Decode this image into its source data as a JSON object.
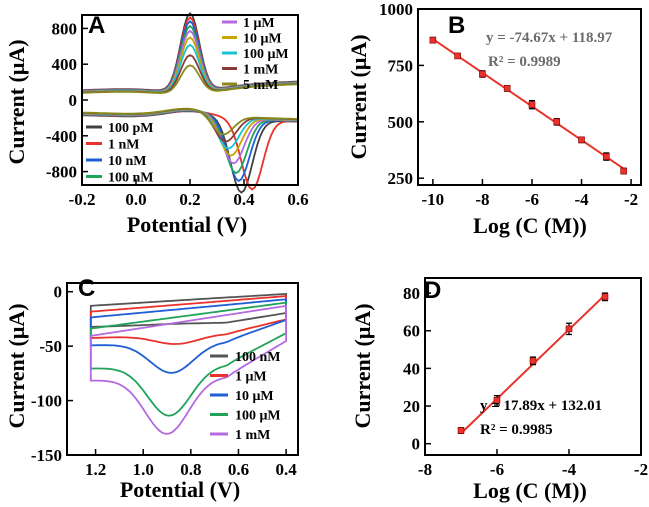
{
  "chart_data": [
    {
      "id": "A",
      "type": "line",
      "panel_label": "A",
      "title": "",
      "xlabel": "Potential (V)",
      "ylabel": "Current (μA)",
      "xlim": [
        -0.2,
        0.6
      ],
      "ylim": [
        -950,
        950
      ],
      "xticks": [
        -0.2,
        0.0,
        0.2,
        0.4,
        0.6
      ],
      "xtick_labels": [
        "-0.2",
        "0.0",
        "0.2",
        "0.4",
        "0.6"
      ],
      "yticks": [
        800,
        400,
        0,
        -400,
        -800
      ],
      "ytick_labels": [
        "800",
        "400",
        "0",
        "-400",
        "-800"
      ],
      "legend_top_right": [
        "1 μM",
        "10 μM",
        "100 μM",
        "1 mM",
        "5 mM"
      ],
      "legend_bottom_left": [
        "100 pM",
        "1 nM",
        "10 nM",
        "100 nM"
      ],
      "series": [
        {
          "name": "100 pM",
          "color": "#404040",
          "anodic_peak": 870,
          "cathodic_peak": -820,
          "cathodic_peak_potential": 0.39
        },
        {
          "name": "1 nM",
          "color": "#e8322b",
          "anodic_peak": 830,
          "cathodic_peak": -780,
          "cathodic_peak_potential": 0.43
        },
        {
          "name": "10 nM",
          "color": "#1f5fd6",
          "anodic_peak": 790,
          "cathodic_peak": -700,
          "cathodic_peak_potential": 0.38
        },
        {
          "name": "100 nM",
          "color": "#21a35b",
          "anodic_peak": 740,
          "cathodic_peak": -620,
          "cathodic_peak_potential": 0.37
        },
        {
          "name": "1 μM",
          "color": "#b46ae0",
          "anodic_peak": 690,
          "cathodic_peak": -520,
          "cathodic_peak_potential": 0.36
        },
        {
          "name": "10 μM",
          "color": "#c8a600",
          "anodic_peak": 620,
          "cathodic_peak": -440,
          "cathodic_peak_potential": 0.35
        },
        {
          "name": "100 μM",
          "color": "#19c3d2",
          "anodic_peak": 540,
          "cathodic_peak": -370,
          "cathodic_peak_potential": 0.34
        },
        {
          "name": "1 mM",
          "color": "#8b3a3a",
          "anodic_peak": 430,
          "cathodic_peak": -300,
          "cathodic_peak_potential": 0.33
        },
        {
          "name": "5 mM",
          "color": "#8a8a1a",
          "anodic_peak": 320,
          "cathodic_peak": -230,
          "cathodic_peak_potential": 0.32
        }
      ]
    },
    {
      "id": "B",
      "type": "scatter",
      "panel_label": "B",
      "title": "",
      "xlabel": "Log (C (M))",
      "ylabel": "Current (μA)",
      "xlim": [
        -10.6,
        -1.6
      ],
      "ylim": [
        220,
        1000
      ],
      "xticks": [
        -10,
        -8,
        -6,
        -4,
        -2
      ],
      "xtick_labels": [
        "-10",
        "-8",
        "-6",
        "-4",
        "-2"
      ],
      "yticks": [
        250,
        500,
        750,
        1000
      ],
      "ytick_labels": [
        "250",
        "500",
        "750",
        "1000"
      ],
      "x": [
        -10,
        -9,
        -8,
        -7,
        -6,
        -5,
        -4,
        -3,
        -2.3
      ],
      "y": [
        862,
        792,
        712,
        648,
        576,
        500,
        420,
        346,
        282
      ],
      "error": [
        12,
        10,
        14,
        12,
        18,
        14,
        12,
        16,
        12
      ],
      "fit": {
        "slope": -74.67,
        "intercept": 118.97
      },
      "equation": "y = -74.67x + 118.97",
      "r_squared": "R² = 0.9989",
      "marker_color": "#e8322b",
      "line_color": "#e8322b"
    },
    {
      "id": "C",
      "type": "line",
      "panel_label": "C",
      "title": "",
      "xlabel": "Potential (V)",
      "ylabel": "Current (μA)",
      "xlim": [
        1.32,
        0.35
      ],
      "ylim": [
        -150,
        8
      ],
      "xticks": [
        1.2,
        1.0,
        0.8,
        0.6,
        0.4
      ],
      "xtick_labels": [
        "1.2",
        "1.0",
        "0.8",
        "0.6",
        "0.4"
      ],
      "yticks": [
        0,
        -50,
        -100,
        -150
      ],
      "ytick_labels": [
        "0",
        "-50",
        "-100",
        "-150"
      ],
      "legend": [
        "100 nM",
        "1 μM",
        "10 μM",
        "100 μM",
        "1 mM"
      ],
      "series": [
        {
          "name": "100 nM",
          "color": "#555555",
          "peak_current": -30,
          "peak_potential": 0.86,
          "start_current": -38,
          "top_current": -2
        },
        {
          "name": "1 μM",
          "color": "#e8322b",
          "peak_current": -48,
          "peak_potential": 0.86,
          "start_current": -50,
          "top_current": -4
        },
        {
          "name": "10 μM",
          "color": "#1f5fd6",
          "peak_current": -74,
          "peak_potential": 0.88,
          "start_current": -58,
          "top_current": -7
        },
        {
          "name": "100 μM",
          "color": "#21a35b",
          "peak_current": -112,
          "peak_potential": 0.89,
          "start_current": -83,
          "top_current": -10
        },
        {
          "name": "1 mM",
          "color": "#b46ae0",
          "peak_current": -128,
          "peak_potential": 0.9,
          "start_current": -96,
          "top_current": -13
        }
      ]
    },
    {
      "id": "D",
      "type": "scatter",
      "panel_label": "D",
      "title": "",
      "xlabel": "Log (C (M))",
      "ylabel": "Current (μA)",
      "xlim": [
        -8,
        -2
      ],
      "ylim": [
        -6,
        88
      ],
      "xticks": [
        -8,
        -6,
        -4,
        -2
      ],
      "xtick_labels": [
        "-8",
        "-6",
        "-4",
        "-2"
      ],
      "yticks": [
        0,
        20,
        40,
        60,
        80
      ],
      "ytick_labels": [
        "0",
        "20",
        "40",
        "60",
        "80"
      ],
      "x": [
        -7,
        -6,
        -5,
        -4,
        -3
      ],
      "y": [
        7,
        23,
        44,
        61,
        78
      ],
      "error": [
        1.5,
        2.5,
        2,
        3,
        2
      ],
      "fit": {
        "x_start": -7,
        "x_end": -3,
        "y_start": 5.5,
        "y_end": 79
      },
      "equation": "y = 17.89x + 132.01",
      "r_squared": "R² = 0.9985",
      "marker_color": "#e8322b",
      "line_color": "#e8322b"
    }
  ]
}
